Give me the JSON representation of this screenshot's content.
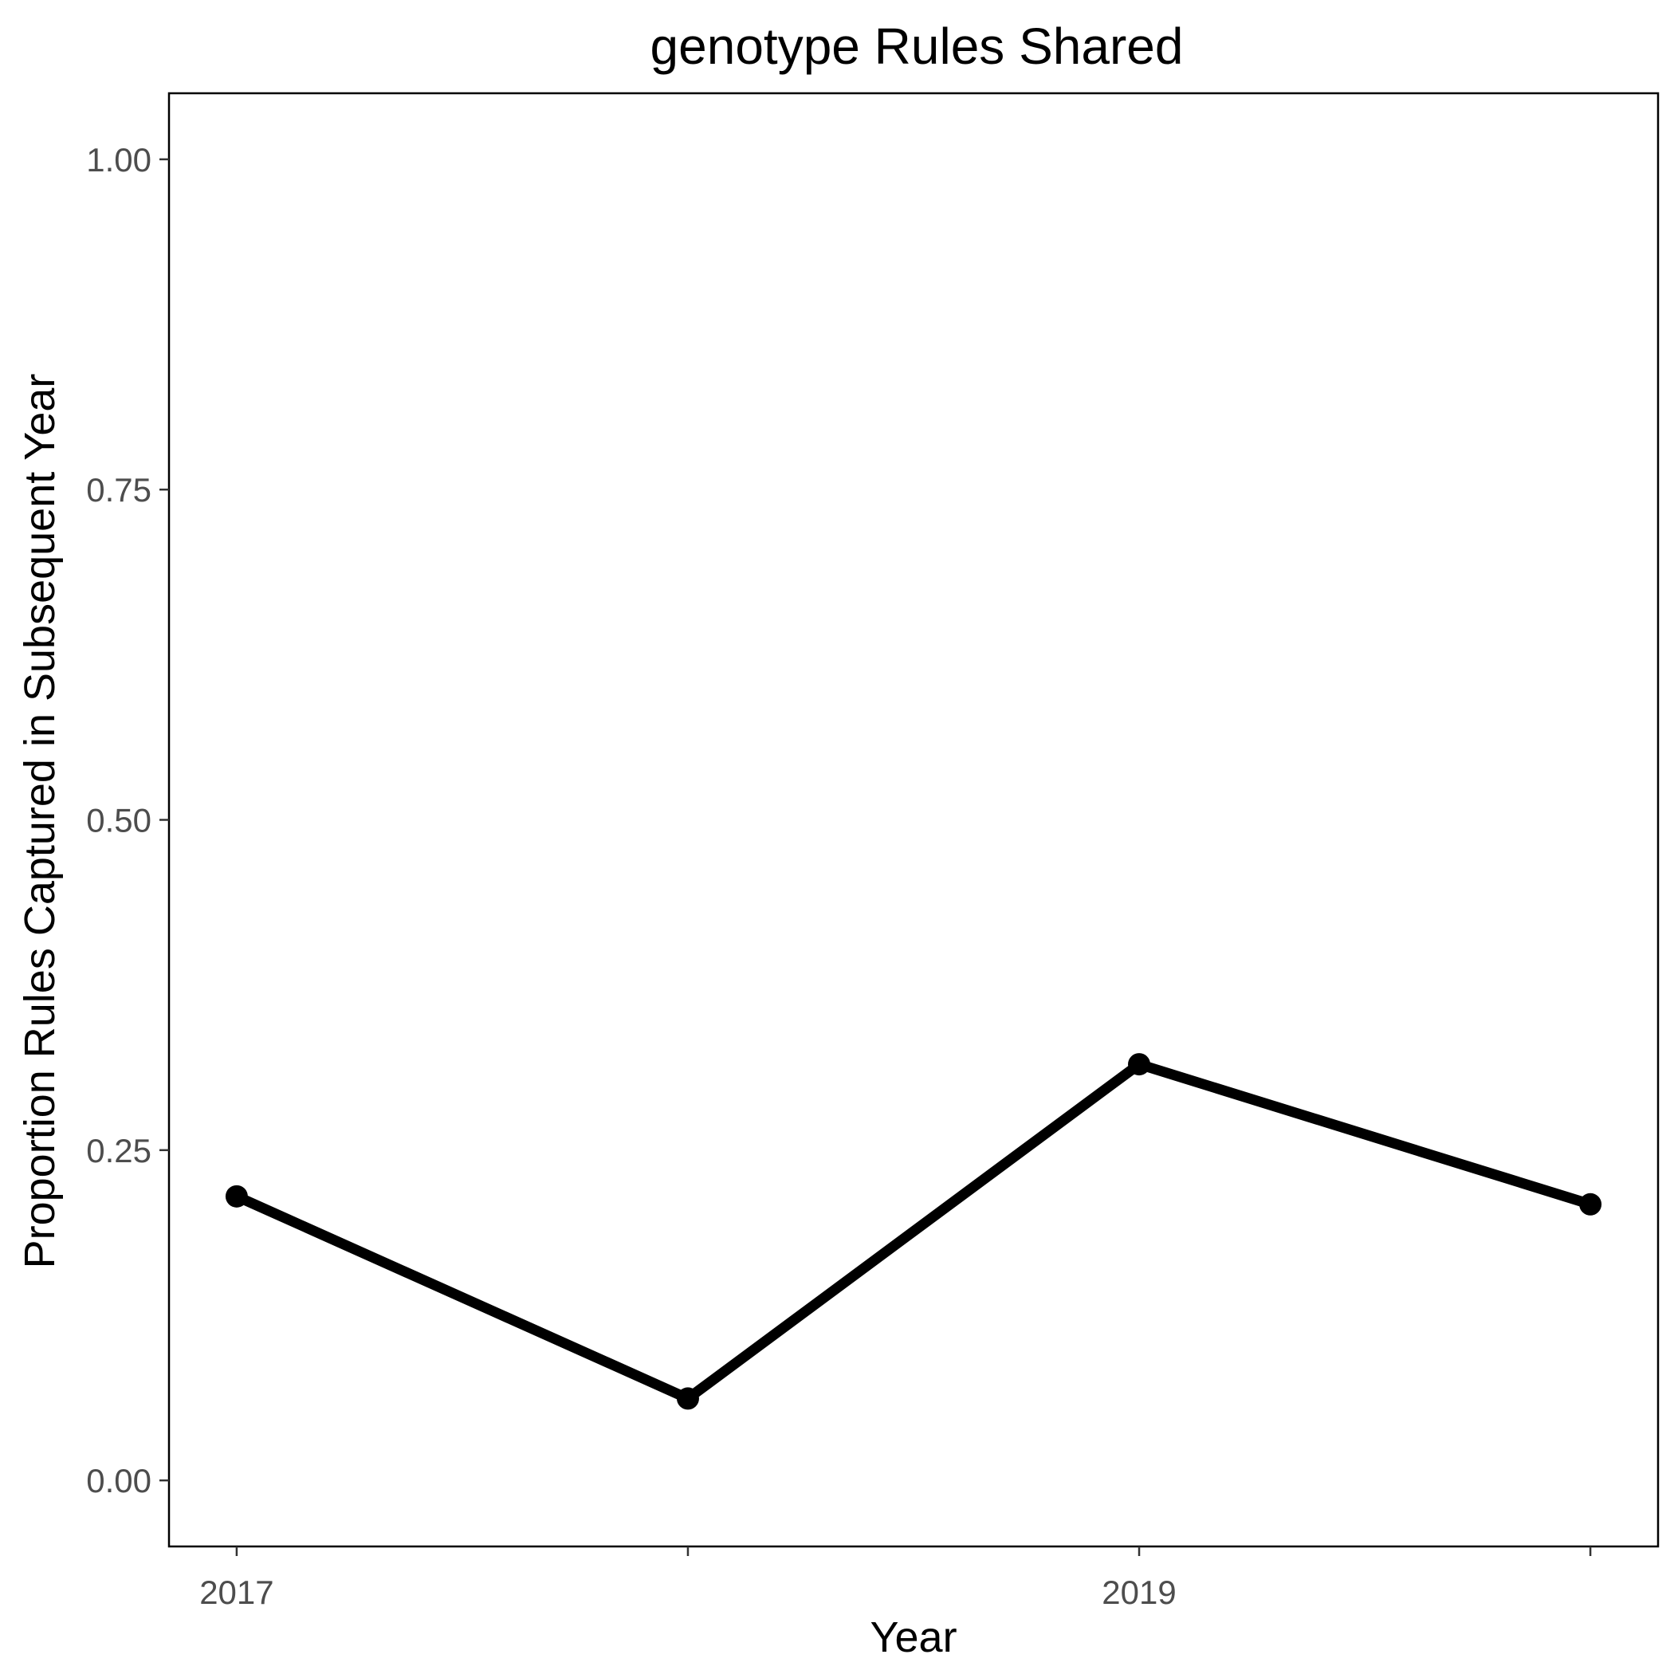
{
  "chart_data": {
    "type": "line",
    "title": "genotype Rules Shared",
    "xlabel": "Year",
    "ylabel": "Proportion Rules Captured in Subsequent Year",
    "x": [
      2017,
      2018,
      2019,
      2020
    ],
    "x_tick_values": [
      2017,
      2019
    ],
    "x_tick_labels": [
      "2017",
      "2019"
    ],
    "series": [
      {
        "values": [
          0.215,
          0.062,
          0.315,
          0.209
        ]
      }
    ],
    "xlim": [
      2016.85,
      2020.15
    ],
    "ylim": [
      -0.05,
      1.05
    ],
    "y_tick_values": [
      0,
      0.25,
      0.5,
      0.75,
      1.0
    ],
    "y_tick_labels": [
      "0.00",
      "0.25",
      "0.50",
      "0.75",
      "1.00"
    ],
    "grid": false,
    "line_color": "#000000",
    "point_color": "#000000"
  }
}
